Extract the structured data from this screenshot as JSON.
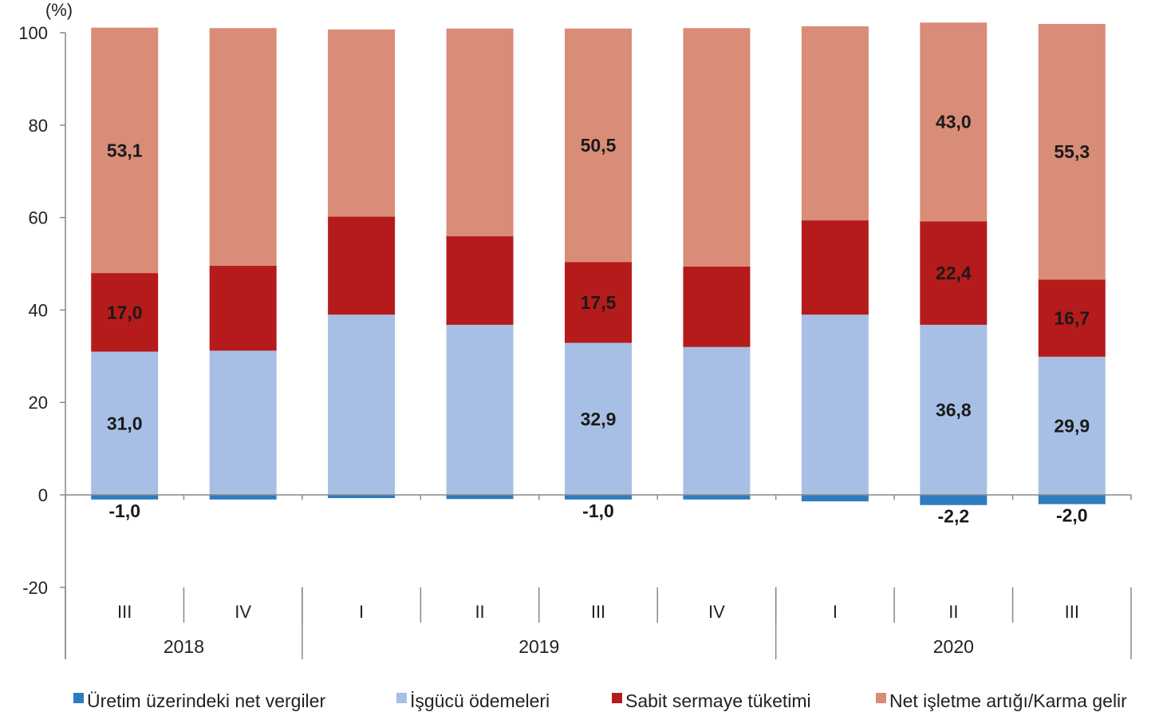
{
  "chart_data": {
    "type": "bar",
    "stacked": true,
    "unit_label": "(%)",
    "ylim": [
      -20,
      100
    ],
    "yticks": [
      100,
      80,
      60,
      40,
      20,
      0,
      -20
    ],
    "categories": [
      "III",
      "IV",
      "I",
      "II",
      "III",
      "IV",
      "I",
      "II",
      "III"
    ],
    "year_groups": [
      {
        "label": "2018",
        "span": 2
      },
      {
        "label": "2019",
        "span": 4
      },
      {
        "label": "2020",
        "span": 3
      }
    ],
    "legend_position": "bottom",
    "series": [
      {
        "name": "Üretim üzerindeki net vergiler",
        "color": "#2e7bbf",
        "values": [
          -1.0,
          -1.0,
          -0.7,
          -0.9,
          -1.0,
          -1.0,
          -1.4,
          -2.2,
          -2.0
        ],
        "labels": [
          "-1,0",
          "",
          "",
          "",
          "-1,0",
          "",
          "",
          "-2,2",
          "-2,0"
        ]
      },
      {
        "name": "İşgücü ödemeleri",
        "color": "#a7bfe4",
        "values": [
          31.0,
          31.2,
          39.0,
          36.8,
          32.9,
          32.0,
          39.0,
          36.8,
          29.9
        ],
        "labels": [
          "31,0",
          "",
          "",
          "",
          "32,9",
          "",
          "",
          "36,8",
          "29,9"
        ]
      },
      {
        "name": "Sabit sermaye tüketimi",
        "color": "#b51b1b",
        "values": [
          17.0,
          18.4,
          21.2,
          19.2,
          17.5,
          17.4,
          20.4,
          22.4,
          16.7
        ],
        "labels": [
          "17,0",
          "",
          "",
          "",
          "17,5",
          "",
          "",
          "22,4",
          "16,7"
        ]
      },
      {
        "name": "Net işletme artığı/Karma gelir",
        "color": "#d98c77",
        "values": [
          53.1,
          51.4,
          40.5,
          44.9,
          50.5,
          51.6,
          42.0,
          43.0,
          55.3
        ],
        "labels": [
          "53,1",
          "",
          "",
          "",
          "50,5",
          "",
          "",
          "43,0",
          "55,3"
        ]
      }
    ]
  }
}
